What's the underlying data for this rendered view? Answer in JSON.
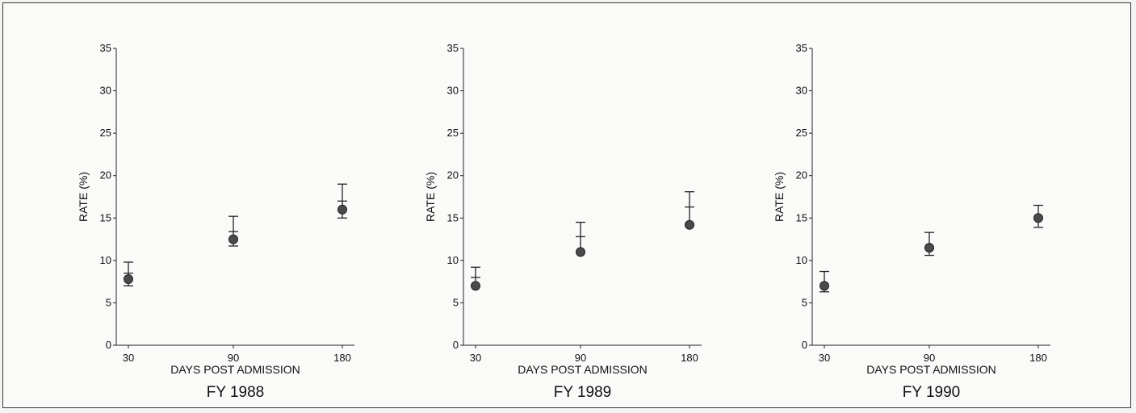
{
  "chart_data": [
    {
      "type": "scatter",
      "title": "FY 1988",
      "xlabel": "DAYS POST ADMISSION",
      "ylabel": "RATE (%)",
      "categories": [
        "30",
        "90",
        "180"
      ],
      "ylim": [
        0,
        35
      ],
      "yticks": [
        "0",
        "5",
        "10",
        "15",
        "20",
        "25",
        "30",
        "35"
      ],
      "points": [
        {
          "x": "30",
          "y": 7.8,
          "lower": 7.0,
          "upper": 9.8,
          "mid_tick": 8.5
        },
        {
          "x": "90",
          "y": 12.5,
          "lower": 11.7,
          "upper": 15.2,
          "mid_tick": 13.4
        },
        {
          "x": "180",
          "y": 16.0,
          "lower": 15.0,
          "upper": 19.0,
          "mid_tick": 17.0
        }
      ],
      "grid": false
    },
    {
      "type": "scatter",
      "title": "FY 1989",
      "xlabel": "DAYS POST ADMISSION",
      "ylabel": "RATE (%)",
      "categories": [
        "30",
        "90",
        "180"
      ],
      "ylim": [
        0,
        35
      ],
      "yticks": [
        "0",
        "5",
        "10",
        "15",
        "20",
        "25",
        "30",
        "35"
      ],
      "points": [
        {
          "x": "30",
          "y": 7.0,
          "lower": 7.0,
          "upper": 9.2,
          "mid_tick": 8.0
        },
        {
          "x": "90",
          "y": 11.0,
          "lower": 11.0,
          "upper": 14.5,
          "mid_tick": 12.8
        },
        {
          "x": "180",
          "y": 14.2,
          "lower": 14.2,
          "upper": 18.1,
          "mid_tick": 16.3
        }
      ],
      "grid": false
    },
    {
      "type": "scatter",
      "title": "FY 1990",
      "xlabel": "DAYS POST ADMISSION",
      "ylabel": "RATE (%)",
      "categories": [
        "30",
        "90",
        "180"
      ],
      "ylim": [
        0,
        35
      ],
      "yticks": [
        "0",
        "5",
        "10",
        "15",
        "20",
        "25",
        "30",
        "35"
      ],
      "points": [
        {
          "x": "30",
          "y": 7.0,
          "lower": 6.3,
          "upper": 8.7,
          "mid_tick": null
        },
        {
          "x": "90",
          "y": 11.5,
          "lower": 10.6,
          "upper": 13.3,
          "mid_tick": null
        },
        {
          "x": "180",
          "y": 15.0,
          "lower": 13.9,
          "upper": 16.5,
          "mid_tick": null
        }
      ],
      "grid": false
    }
  ]
}
